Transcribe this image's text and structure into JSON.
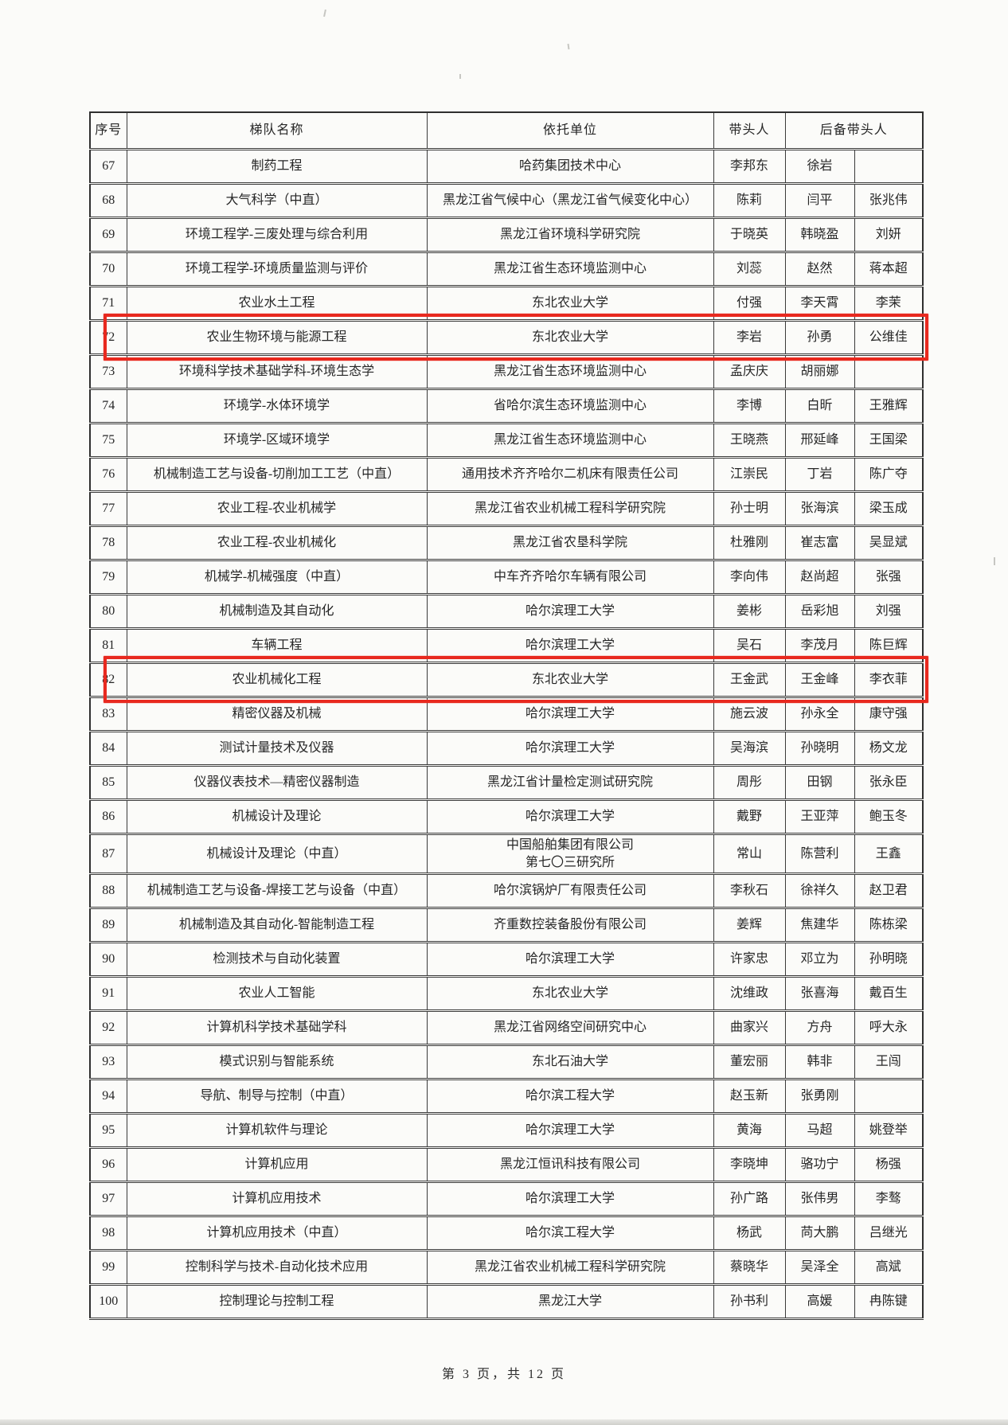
{
  "page": {
    "footer": "第 3 页，共 12 页"
  },
  "table": {
    "headers": {
      "no": "序号",
      "name": "梯队名称",
      "unit": "依托单位",
      "leader": "带头人",
      "backup": "后备带头人"
    },
    "highlight_color": "#e8291f",
    "rows": [
      {
        "no": "67",
        "name": "制药工程",
        "unit": "哈药集团技术中心",
        "leader": "李邦东",
        "backup1": "徐岩",
        "backup2": "",
        "highlighted": false
      },
      {
        "no": "68",
        "name": "大气科学（中直）",
        "unit": "黑龙江省气候中心（黑龙江省气候变化中心）",
        "leader": "陈莉",
        "backup1": "闫平",
        "backup2": "张兆伟",
        "highlighted": false
      },
      {
        "no": "69",
        "name": "环境工程学-三废处理与综合利用",
        "unit": "黑龙江省环境科学研究院",
        "leader": "于晓英",
        "backup1": "韩晓盈",
        "backup2": "刘妍",
        "highlighted": false
      },
      {
        "no": "70",
        "name": "环境工程学-环境质量监测与评价",
        "unit": "黑龙江省生态环境监测中心",
        "leader": "刘蕊",
        "backup1": "赵然",
        "backup2": "蒋本超",
        "highlighted": false
      },
      {
        "no": "71",
        "name": "农业水土工程",
        "unit": "东北农业大学",
        "leader": "付强",
        "backup1": "李天霄",
        "backup2": "李茉",
        "highlighted": false
      },
      {
        "no": "72",
        "name": "农业生物环境与能源工程",
        "unit": "东北农业大学",
        "leader": "李岩",
        "backup1": "孙勇",
        "backup2": "公维佳",
        "highlighted": true
      },
      {
        "no": "73",
        "name": "环境科学技术基础学科-环境生态学",
        "unit": "黑龙江省生态环境监测中心",
        "leader": "孟庆庆",
        "backup1": "胡丽娜",
        "backup2": "",
        "highlighted": false
      },
      {
        "no": "74",
        "name": "环境学-水体环境学",
        "unit": "省哈尔滨生态环境监测中心",
        "leader": "李博",
        "backup1": "白昕",
        "backup2": "王雅辉",
        "highlighted": false
      },
      {
        "no": "75",
        "name": "环境学-区域环境学",
        "unit": "黑龙江省生态环境监测中心",
        "leader": "王晓燕",
        "backup1": "邢延峰",
        "backup2": "王国梁",
        "highlighted": false
      },
      {
        "no": "76",
        "name": "机械制造工艺与设备-切削加工工艺（中直）",
        "unit": "通用技术齐齐哈尔二机床有限责任公司",
        "leader": "江崇民",
        "backup1": "丁岩",
        "backup2": "陈广夺",
        "highlighted": false
      },
      {
        "no": "77",
        "name": "农业工程-农业机械学",
        "unit": "黑龙江省农业机械工程科学研究院",
        "leader": "孙士明",
        "backup1": "张海滨",
        "backup2": "梁玉成",
        "highlighted": false
      },
      {
        "no": "78",
        "name": "农业工程-农业机械化",
        "unit": "黑龙江省农垦科学院",
        "leader": "杜雅刚",
        "backup1": "崔志富",
        "backup2": "吴显斌",
        "highlighted": false
      },
      {
        "no": "79",
        "name": "机械学-机械强度（中直）",
        "unit": "中车齐齐哈尔车辆有限公司",
        "leader": "李向伟",
        "backup1": "赵尚超",
        "backup2": "张强",
        "highlighted": false
      },
      {
        "no": "80",
        "name": "机械制造及其自动化",
        "unit": "哈尔滨理工大学",
        "leader": "姜彬",
        "backup1": "岳彩旭",
        "backup2": "刘强",
        "highlighted": false
      },
      {
        "no": "81",
        "name": "车辆工程",
        "unit": "哈尔滨理工大学",
        "leader": "吴石",
        "backup1": "李茂月",
        "backup2": "陈巨辉",
        "highlighted": false
      },
      {
        "no": "82",
        "name": "农业机械化工程",
        "unit": "东北农业大学",
        "leader": "王金武",
        "backup1": "王金峰",
        "backup2": "李衣菲",
        "highlighted": true
      },
      {
        "no": "83",
        "name": "精密仪器及机械",
        "unit": "哈尔滨理工大学",
        "leader": "施云波",
        "backup1": "孙永全",
        "backup2": "康守强",
        "highlighted": false
      },
      {
        "no": "84",
        "name": "测试计量技术及仪器",
        "unit": "哈尔滨理工大学",
        "leader": "吴海滨",
        "backup1": "孙晓明",
        "backup2": "杨文龙",
        "highlighted": false
      },
      {
        "no": "85",
        "name": "仪器仪表技术—精密仪器制造",
        "unit": "黑龙江省计量检定测试研究院",
        "leader": "周彤",
        "backup1": "田钢",
        "backup2": "张永臣",
        "highlighted": false
      },
      {
        "no": "86",
        "name": "机械设计及理论",
        "unit": "哈尔滨理工大学",
        "leader": "戴野",
        "backup1": "王亚萍",
        "backup2": "鲍玉冬",
        "highlighted": false
      },
      {
        "no": "87",
        "name": "机械设计及理论（中直）",
        "unit": "中国船舶集团有限公司\n第七〇三研究所",
        "leader": "常山",
        "backup1": "陈营利",
        "backup2": "王鑫",
        "highlighted": false
      },
      {
        "no": "88",
        "name": "机械制造工艺与设备-焊接工艺与设备（中直）",
        "unit": "哈尔滨锅炉厂有限责任公司",
        "leader": "李秋石",
        "backup1": "徐祥久",
        "backup2": "赵卫君",
        "highlighted": false
      },
      {
        "no": "89",
        "name": "机械制造及其自动化-智能制造工程",
        "unit": "齐重数控装备股份有限公司",
        "leader": "姜辉",
        "backup1": "焦建华",
        "backup2": "陈栋梁",
        "highlighted": false
      },
      {
        "no": "90",
        "name": "检测技术与自动化装置",
        "unit": "哈尔滨理工大学",
        "leader": "许家忠",
        "backup1": "邓立为",
        "backup2": "孙明晓",
        "highlighted": false
      },
      {
        "no": "91",
        "name": "农业人工智能",
        "unit": "东北农业大学",
        "leader": "沈维政",
        "backup1": "张喜海",
        "backup2": "戴百生",
        "highlighted": false
      },
      {
        "no": "92",
        "name": "计算机科学技术基础学科",
        "unit": "黑龙江省网络空间研究中心",
        "leader": "曲家兴",
        "backup1": "方舟",
        "backup2": "呼大永",
        "highlighted": false
      },
      {
        "no": "93",
        "name": "模式识别与智能系统",
        "unit": "东北石油大学",
        "leader": "董宏丽",
        "backup1": "韩非",
        "backup2": "王闯",
        "highlighted": false
      },
      {
        "no": "94",
        "name": "导航、制导与控制（中直）",
        "unit": "哈尔滨工程大学",
        "leader": "赵玉新",
        "backup1": "张勇刚",
        "backup2": "",
        "highlighted": false
      },
      {
        "no": "95",
        "name": "计算机软件与理论",
        "unit": "哈尔滨理工大学",
        "leader": "黄海",
        "backup1": "马超",
        "backup2": "姚登举",
        "highlighted": false
      },
      {
        "no": "96",
        "name": "计算机应用",
        "unit": "黑龙江恒讯科技有限公司",
        "leader": "李晓坤",
        "backup1": "骆功宁",
        "backup2": "杨强",
        "highlighted": false
      },
      {
        "no": "97",
        "name": "计算机应用技术",
        "unit": "哈尔滨理工大学",
        "leader": "孙广路",
        "backup1": "张伟男",
        "backup2": "李骜",
        "highlighted": false
      },
      {
        "no": "98",
        "name": "计算机应用技术（中直）",
        "unit": "哈尔滨工程大学",
        "leader": "杨武",
        "backup1": "苘大鹏",
        "backup2": "吕继光",
        "highlighted": false
      },
      {
        "no": "99",
        "name": "控制科学与技术-自动化技术应用",
        "unit": "黑龙江省农业机械工程科学研究院",
        "leader": "蔡晓华",
        "backup1": "吴泽全",
        "backup2": "高斌",
        "highlighted": false
      },
      {
        "no": "100",
        "name": "控制理论与控制工程",
        "unit": "黑龙江大学",
        "leader": "孙书利",
        "backup1": "高媛",
        "backup2": "冉陈键",
        "highlighted": false
      }
    ]
  }
}
